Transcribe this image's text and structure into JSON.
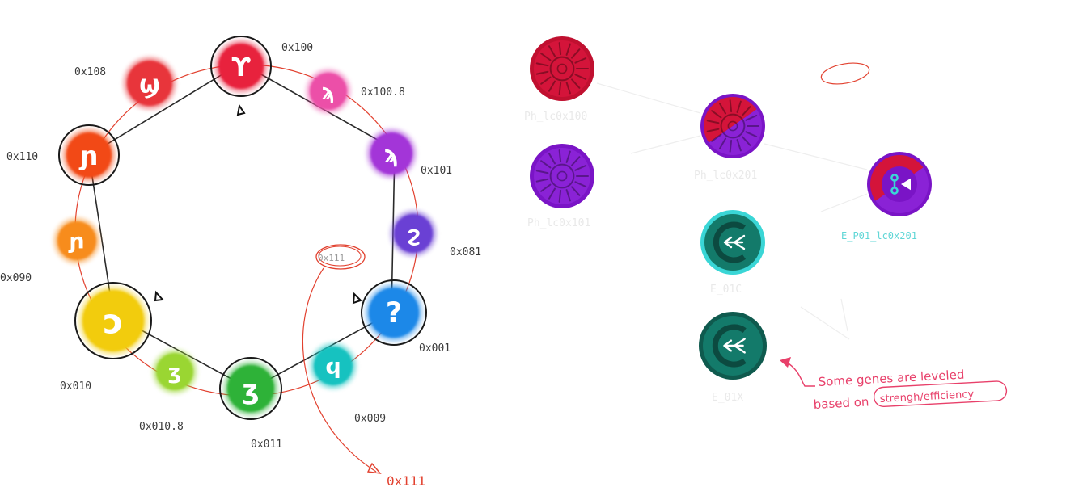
{
  "ring": {
    "nodes": [
      {
        "id": "n100",
        "label": "0x100",
        "glyph": "ϒ",
        "color": "#e8203c",
        "selected": true
      },
      {
        "id": "n1008",
        "label": "0x100.8",
        "glyph": "ϡ",
        "color": "#ec4fa8",
        "selected": false
      },
      {
        "id": "n101",
        "label": "0x101",
        "glyph": "ϡ",
        "color": "#a334d8",
        "selected": false
      },
      {
        "id": "n081",
        "label": "0x081",
        "glyph": "ϩ",
        "color": "#6a3fd4",
        "selected": false
      },
      {
        "id": "n001",
        "label": "0x001",
        "glyph": "?",
        "color": "#1e88e8",
        "selected": true
      },
      {
        "id": "n009",
        "label": "0x009",
        "glyph": "ϥ",
        "color": "#19c2c0",
        "selected": false
      },
      {
        "id": "n011",
        "label": "0x011",
        "glyph": "ʒ",
        "color": "#2eb238",
        "selected": true
      },
      {
        "id": "n0108",
        "label": "0x010.8",
        "glyph": "ʒ",
        "color": "#9ad630",
        "selected": false
      },
      {
        "id": "n010",
        "label": "0x010",
        "glyph": "ɔ",
        "color": "#f2cc0e",
        "selected": true
      },
      {
        "id": "n090",
        "label": "0x090",
        "glyph": "ɲ",
        "color": "#f78c1f",
        "selected": false
      },
      {
        "id": "n110",
        "label": "0x110",
        "glyph": "ɲ",
        "color": "#f24a12",
        "selected": true
      },
      {
        "id": "n108",
        "label": "0x108",
        "glyph": "ϣ",
        "color": "#e8363a",
        "selected": false
      }
    ],
    "center_label": "0x111",
    "center_out_label": "0x111"
  },
  "genes": [
    {
      "id": "g1",
      "label": "Ph_lc0x100",
      "color": "#d4143a",
      "ring": "#c01030"
    },
    {
      "id": "g2",
      "label": "Ph_lc0x101",
      "color": "#8a22d6",
      "ring": "#7a14c6"
    },
    {
      "id": "g3",
      "label": "Ph_lc0x201",
      "color": "#d4143a",
      "ring": "#7a14c6"
    },
    {
      "id": "g4",
      "label": "E_01C",
      "color": "#137a6a",
      "ring": "#3ad6d6"
    },
    {
      "id": "g5",
      "label": "E_01X",
      "color": "#137a6a",
      "ring": "#0f5a4e"
    },
    {
      "id": "g6",
      "label": "E_P01_lc0x201",
      "color": "#d4143a",
      "ring": "#7a14c6"
    }
  ],
  "annotation": {
    "line1": "Some genes are leveled",
    "line2": "based on",
    "boxed": "strengh/efficiency"
  }
}
